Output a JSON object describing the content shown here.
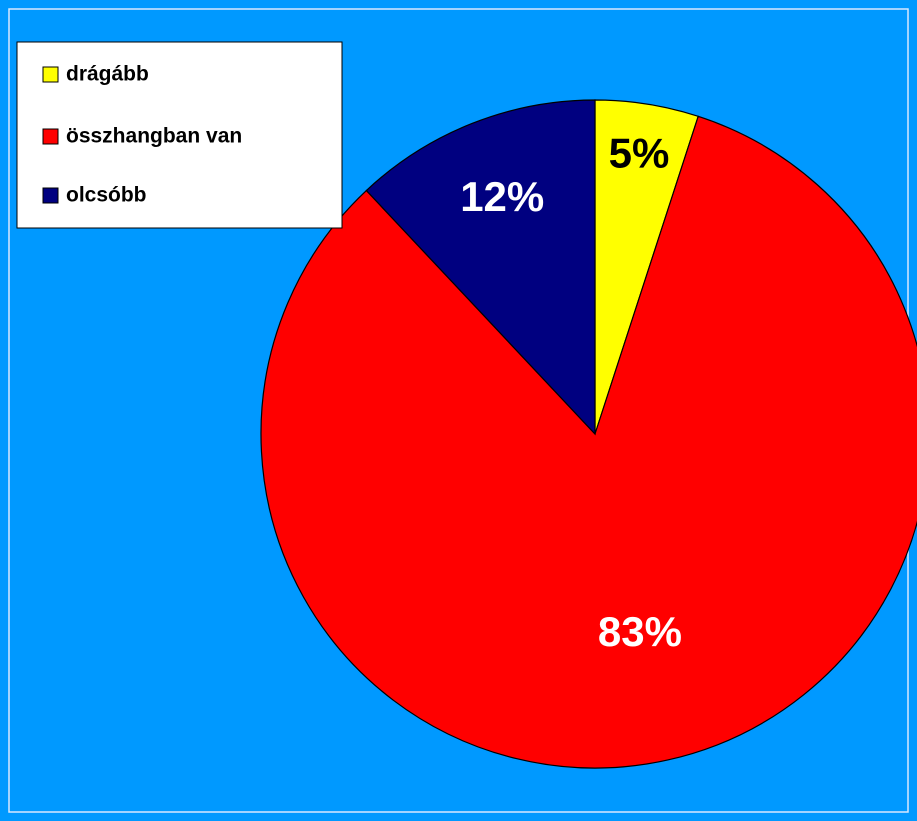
{
  "chart_data": {
    "type": "pie",
    "categories": [
      "drágább",
      "összhangban van",
      "olcsóbb"
    ],
    "values": [
      5,
      83,
      12
    ],
    "value_labels": [
      "5%",
      "83%",
      "12%"
    ],
    "colors": [
      "#ffff00",
      "#ff0000",
      "#000080"
    ],
    "legend": "top-left"
  }
}
